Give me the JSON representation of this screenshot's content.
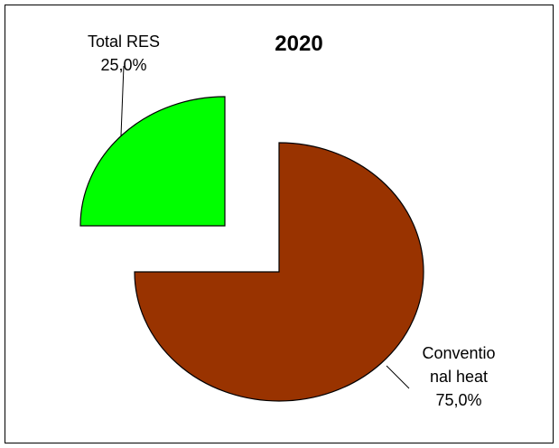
{
  "chart_data": {
    "type": "pie",
    "title": "2020",
    "categories": [
      "Total RES",
      "Conventional heat"
    ],
    "values": [
      25.0,
      75.0
    ],
    "value_labels": [
      "25,0%",
      "75,0%"
    ],
    "label_lines": {
      "Total RES": [
        "Total RES",
        "25,0%"
      ],
      "Conventional heat": [
        "Conventio",
        "nal heat",
        "75,0%"
      ]
    },
    "colors": [
      "#00ff00",
      "#993300"
    ],
    "exploded": "Total RES",
    "legend": "none"
  }
}
